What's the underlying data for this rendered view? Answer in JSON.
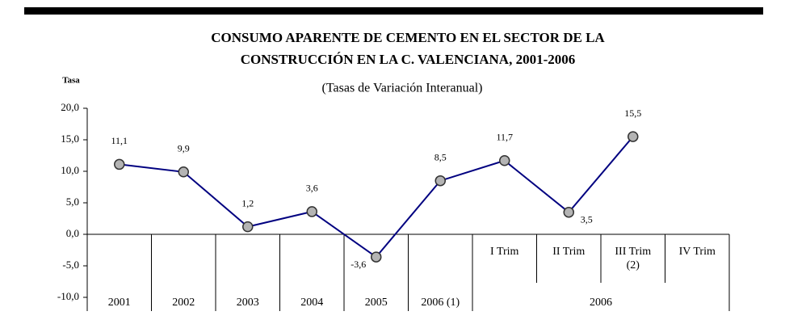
{
  "chart_data": {
    "type": "line",
    "title": [
      "CONSUMO APARENTE DE CEMENTO EN EL SECTOR DE LA",
      "CONSTRUCCIÓN EN LA C. VALENCIANA, 2001-2006"
    ],
    "subtitle": "(Tasas de Variación Interanual)",
    "y_label": "Tasa",
    "categories": [
      "2001",
      "2002",
      "2003",
      "2004",
      "2005",
      "2006 (1)",
      "I Trim",
      "II Trim",
      "III Trim (2)",
      "IV Trim"
    ],
    "category_group": "2006",
    "series": [
      {
        "name": "Tasa",
        "color": "#000080",
        "marker_color": "#b4b4b4",
        "values": [
          11.1,
          9.9,
          1.2,
          3.6,
          -3.6,
          8.5,
          11.7,
          3.5,
          15.5,
          null
        ],
        "value_labels": [
          "11,1",
          "9,9",
          "1,2",
          "3,6",
          "-3,6",
          "8,5",
          "11,7",
          "3,5",
          "15,5",
          null
        ]
      }
    ],
    "ylim": [
      -10,
      20
    ],
    "yticks": [
      {
        "value": -10,
        "label": "-10,0"
      },
      {
        "value": -5,
        "label": "-5,0"
      },
      {
        "value": 0,
        "label": "0,0"
      },
      {
        "value": 5,
        "label": "5,0"
      },
      {
        "value": 10,
        "label": "10,0"
      },
      {
        "value": 15,
        "label": "15,0"
      },
      {
        "value": 20,
        "label": "20,0"
      }
    ],
    "grid": false
  }
}
